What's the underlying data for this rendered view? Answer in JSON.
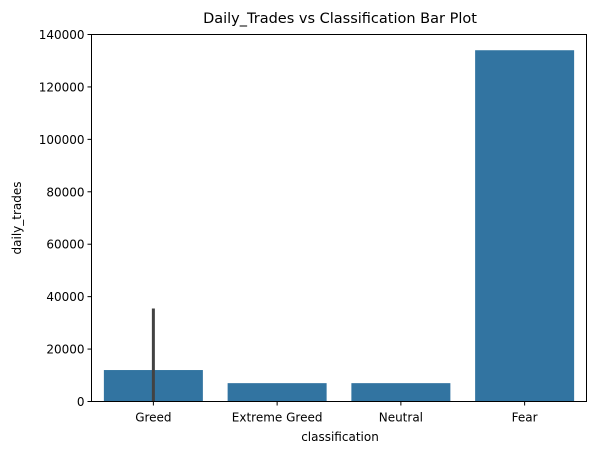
{
  "chart_data": {
    "type": "bar",
    "title": "Daily_Trades vs Classification Bar Plot",
    "xlabel": "classification",
    "ylabel": "daily_trades",
    "categories": [
      "Greed",
      "Extreme Greed",
      "Neutral",
      "Fear"
    ],
    "values": [
      12000,
      7000,
      7000,
      134000
    ],
    "error_bars": [
      [
        0,
        35500
      ],
      null,
      null,
      null
    ],
    "ylim": [
      0,
      140000
    ],
    "yticks": [
      0,
      20000,
      40000,
      60000,
      80000,
      100000,
      120000,
      140000
    ],
    "ytick_labels": [
      "0",
      "20000",
      "40000",
      "60000",
      "80000",
      "100000",
      "120000",
      "140000"
    ],
    "bar_color": "#3274a1",
    "error_color": "#424242",
    "grid": false,
    "legend": "none"
  }
}
